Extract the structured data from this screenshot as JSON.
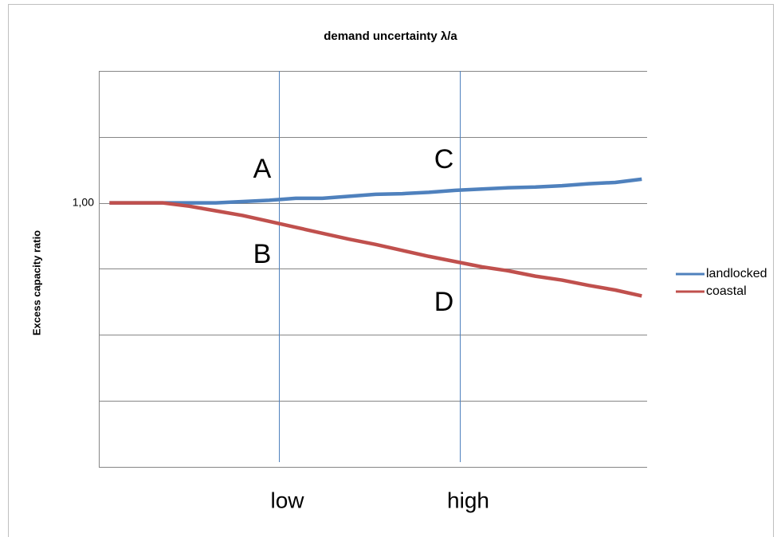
{
  "chart_data": {
    "type": "line",
    "title": "demand uncertainty λ/a",
    "y_label": "Excess capacity ratio",
    "x": [
      0,
      0.05,
      0.1,
      0.15,
      0.2,
      0.25,
      0.3,
      0.35,
      0.4,
      0.45,
      0.5,
      0.55,
      0.6,
      0.65,
      0.7,
      0.75,
      0.8,
      0.85,
      0.9,
      0.95,
      1
    ],
    "xlim": [
      -0.02,
      1.01
    ],
    "xticks": [
      {
        "value": 0.318,
        "label": "low"
      },
      {
        "value": 0.658,
        "label": "high"
      }
    ],
    "ylim": [
      0.6,
      1.2
    ],
    "yticks": [
      {
        "value": 1,
        "label": "1,00"
      }
    ],
    "ygrid": [
      0.6,
      0.7,
      0.8,
      0.9,
      1,
      1.1,
      1.2
    ],
    "series": [
      {
        "name": "landlocked",
        "color": "#4f81bd",
        "values": [
          1,
          1,
          1,
          1,
          1,
          1.002,
          1.004,
          1.007,
          1.007,
          1.01,
          1.013,
          1.014,
          1.016,
          1.019,
          1.021,
          1.023,
          1.024,
          1.026,
          1.029,
          1.031,
          1.036
        ]
      },
      {
        "name": "coastal",
        "color": "#c0504d",
        "values": [
          1,
          1,
          1,
          0.995,
          0.988,
          0.981,
          0.972,
          0.963,
          0.954,
          0.945,
          0.937,
          0.928,
          0.919,
          0.911,
          0.903,
          0.897,
          0.889,
          0.883,
          0.875,
          0.868,
          0.859
        ]
      }
    ],
    "annotations": [
      "A",
      "B",
      "C",
      "D"
    ],
    "legend": "right"
  }
}
